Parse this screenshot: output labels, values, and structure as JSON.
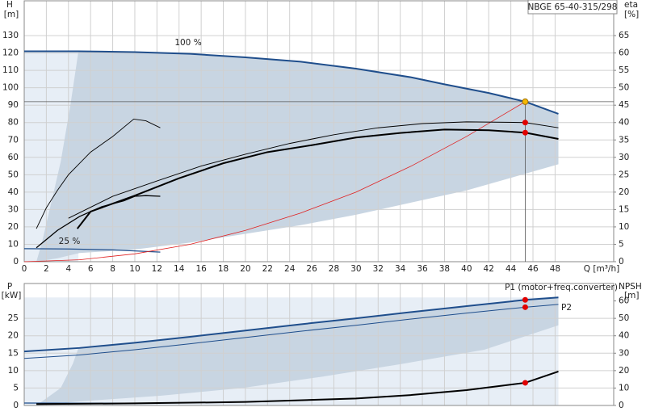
{
  "chart_data": [
    {
      "type": "line",
      "title": "NBGE 65-40-315/298",
      "ylabel": "H",
      "yunit": "[m]",
      "y2label": "eta",
      "y2unit": "[%]",
      "xlabel": "Q [m³/h]",
      "xlim": [
        0,
        53.3
      ],
      "xticks": [
        0,
        2,
        4,
        6,
        8,
        10,
        12,
        14,
        16,
        18,
        20,
        22,
        24,
        26,
        28,
        30,
        32,
        34,
        36,
        38,
        40,
        42,
        44,
        46,
        48
      ],
      "ylim": [
        0,
        150
      ],
      "yticks": [
        0,
        10,
        20,
        30,
        40,
        50,
        60,
        70,
        80,
        90,
        100,
        110,
        120,
        130
      ],
      "y2lim": [
        0,
        75
      ],
      "y2ticks": [
        0,
        5,
        10,
        15,
        20,
        25,
        30,
        35,
        40,
        45,
        50,
        55,
        60,
        65
      ],
      "grid": true,
      "range": {
        "x": [
          1.1,
          1.6,
          2.3,
          3.3,
          4.2,
          4.9,
          10,
          15,
          20,
          25,
          30,
          35,
          38,
          42,
          45.3,
          48.3,
          48.3,
          40,
          35,
          30,
          25,
          20,
          15,
          10,
          5,
          3,
          1.1
        ],
        "values": [
          0,
          11,
          30,
          57.5,
          91,
          121,
          120.5,
          119.5,
          117.5,
          115,
          111,
          106,
          102,
          97,
          92,
          85,
          56,
          41,
          34,
          27,
          21,
          16,
          11,
          7,
          5,
          2,
          0
        ]
      },
      "series": [
        {
          "name": "100 %",
          "color": "#1f4e8c",
          "x": [
            0,
            4.9,
            10,
            15,
            20,
            25,
            30,
            35,
            38,
            42,
            45.3,
            48.3
          ],
          "values": [
            121,
            121,
            120.5,
            119.5,
            117.5,
            115,
            111,
            106,
            102,
            97,
            92,
            85
          ]
        },
        {
          "name": "25 %",
          "color": "#1f4e8c",
          "x": [
            0,
            4,
            8,
            12.3
          ],
          "values": [
            7.5,
            7.3,
            6.8,
            5.5
          ]
        },
        {
          "color": "#e02020",
          "x": [
            0,
            5,
            10,
            15,
            20,
            25,
            30,
            35,
            40,
            45.3
          ],
          "values": [
            0,
            1.1,
            4.5,
            10,
            18,
            28,
            40,
            55,
            72,
            92
          ]
        },
        {
          "color": "#000000",
          "axis": "y2",
          "x": [
            4,
            8,
            12,
            16,
            20,
            24,
            28,
            32,
            36,
            40,
            45.3,
            48.3
          ],
          "values": [
            12.5,
            18.8,
            23.2,
            27.5,
            30.9,
            34,
            36.5,
            38.5,
            39.7,
            40.2,
            40,
            38.5
          ]
        },
        {
          "color": "#000000",
          "axis": "y2",
          "x": [
            4.8,
            6,
            10,
            14,
            18,
            22,
            26,
            30,
            34,
            38,
            42,
            45.3,
            48.3
          ],
          "values": [
            9.5,
            14.4,
            19,
            24,
            28.3,
            31.5,
            33.5,
            35.7,
            37,
            38,
            37.8,
            37.1,
            35.3
          ]
        },
        {
          "color": "#000000",
          "axis": "y2",
          "x": [
            1.1,
            2,
            3,
            4,
            6,
            8,
            9.9,
            11,
            12.3
          ],
          "values": [
            9.5,
            15.5,
            20.5,
            25,
            31.5,
            36,
            41,
            40.5,
            38.5
          ]
        },
        {
          "color": "#000000",
          "axis": "y2",
          "x": [
            1.1,
            3,
            5,
            7,
            9,
            10,
            11,
            12.3
          ],
          "values": [
            4,
            9,
            13,
            15.8,
            17.5,
            18.8,
            19,
            18.8
          ]
        }
      ],
      "points": [
        {
          "x": 45.3,
          "y": 92,
          "color": "#f5b800"
        },
        {
          "x": 45.3,
          "y": 40,
          "axis": "y2",
          "color": "#e00000"
        },
        {
          "x": 45.3,
          "y": 37.1,
          "axis": "y2",
          "color": "#e00000"
        }
      ]
    },
    {
      "type": "line",
      "ylabel": "P",
      "yunit": "[kW]",
      "y2label": "NPSH",
      "y2unit": "[m]",
      "xlim": [
        0,
        53.3
      ],
      "ylim": [
        0,
        35
      ],
      "yticks": [
        0,
        5,
        10,
        15,
        20,
        25
      ],
      "y2lim": [
        0,
        70
      ],
      "y2ticks": [
        0,
        10,
        20,
        30,
        40,
        50,
        60
      ],
      "grid": true,
      "range": {
        "x": [
          1.1,
          3.3,
          4.4,
          4.9,
          10,
          15,
          20,
          25,
          30,
          35,
          40,
          45.3,
          48.3,
          48.3,
          41.6,
          34.3,
          27,
          19.7,
          12.4,
          5.1,
          1.1
        ],
        "values": [
          0,
          5,
          12,
          16.5,
          18,
          19.7,
          21.5,
          23.3,
          25,
          26.8,
          28.5,
          30.3,
          31,
          23,
          16,
          12,
          8.3,
          5,
          2.8,
          1.2,
          0
        ]
      },
      "series": [
        {
          "name": "P1 (motor+freq.converter)",
          "color": "#1f4e8c",
          "x": [
            0,
            5,
            10,
            15,
            20,
            25,
            30,
            35,
            40,
            45.3,
            48.3
          ],
          "values": [
            15.5,
            16.5,
            18,
            19.7,
            21.5,
            23.3,
            25,
            26.8,
            28.5,
            30.3,
            31
          ]
        },
        {
          "name": "P2",
          "color": "#1f4e8c",
          "x": [
            0,
            5,
            10,
            15,
            20,
            25,
            30,
            35,
            40,
            45.3,
            48.3
          ],
          "values": [
            13.5,
            14.5,
            16,
            17.7,
            19.5,
            21.3,
            23,
            24.8,
            26.5,
            28.2,
            29
          ]
        },
        {
          "color": "#1f4e8c",
          "x": [
            0,
            12.3
          ],
          "values": [
            0.7,
            0.6
          ]
        },
        {
          "color": "#000000",
          "axis": "y2",
          "x": [
            1.1,
            10,
            20,
            30,
            35,
            40,
            45.3,
            48.3
          ],
          "values": [
            0.8,
            1.2,
            2,
            4,
            6,
            8.8,
            13,
            19.5
          ]
        }
      ],
      "points": [
        {
          "x": 45.3,
          "y": 30.3,
          "color": "#e00000"
        },
        {
          "x": 45.3,
          "y": 28.2,
          "color": "#e00000"
        },
        {
          "x": 45.3,
          "y": 13,
          "axis": "y2",
          "color": "#e00000"
        }
      ]
    }
  ]
}
